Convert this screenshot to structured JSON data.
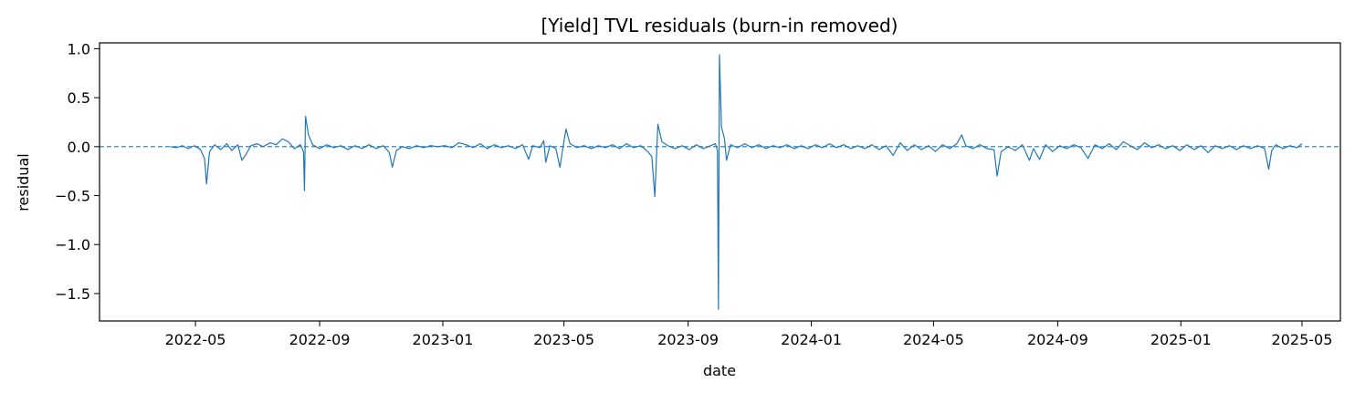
{
  "chart_data": {
    "type": "line",
    "title": "[Yield] TVL residuals (burn-in removed)",
    "xlabel": "date",
    "ylabel": "residual",
    "x_range": [
      "2022-01-26",
      "2025-06-08"
    ],
    "ylim": [
      -1.78,
      1.06
    ],
    "x_ticks": [
      "2022-05-01",
      "2022-09-01",
      "2023-01-01",
      "2023-05-01",
      "2023-09-01",
      "2024-01-01",
      "2024-05-01",
      "2024-09-01",
      "2025-01-01",
      "2025-05-01"
    ],
    "x_tick_labels": [
      "2022-05",
      "2022-09",
      "2023-01",
      "2023-05",
      "2023-09",
      "2024-01",
      "2024-05",
      "2024-09",
      "2025-01",
      "2025-05"
    ],
    "y_ticks": [
      1.0,
      0.5,
      0.0,
      -0.5,
      -1.0,
      -1.5
    ],
    "y_tick_labels": [
      "1.0",
      "0.5",
      "0.0",
      "−0.5",
      "−1.0",
      "−1.5"
    ],
    "reference_line": {
      "y": 0,
      "style": "dashed"
    },
    "grid": false,
    "series": [
      {
        "color": "#1f77b4",
        "points": [
          [
            "2022-04-06",
            0.0
          ],
          [
            "2022-04-12",
            -0.01
          ],
          [
            "2022-04-18",
            0.01
          ],
          [
            "2022-04-24",
            -0.02
          ],
          [
            "2022-04-30",
            0.01
          ],
          [
            "2022-05-06",
            -0.03
          ],
          [
            "2022-05-10",
            -0.12
          ],
          [
            "2022-05-12",
            -0.38
          ],
          [
            "2022-05-15",
            -0.05
          ],
          [
            "2022-05-20",
            0.02
          ],
          [
            "2022-05-26",
            -0.03
          ],
          [
            "2022-06-01",
            0.03
          ],
          [
            "2022-06-06",
            -0.04
          ],
          [
            "2022-06-12",
            0.02
          ],
          [
            "2022-06-16",
            -0.14
          ],
          [
            "2022-06-20",
            -0.08
          ],
          [
            "2022-06-25",
            0.01
          ],
          [
            "2022-07-01",
            0.03
          ],
          [
            "2022-07-07",
            0.0
          ],
          [
            "2022-07-14",
            0.04
          ],
          [
            "2022-07-20",
            0.02
          ],
          [
            "2022-07-26",
            0.08
          ],
          [
            "2022-08-01",
            0.05
          ],
          [
            "2022-08-07",
            -0.02
          ],
          [
            "2022-08-13",
            0.02
          ],
          [
            "2022-08-16",
            -0.05
          ],
          [
            "2022-08-17",
            -0.45
          ],
          [
            "2022-08-18",
            0.31
          ],
          [
            "2022-08-21",
            0.12
          ],
          [
            "2022-08-25",
            0.02
          ],
          [
            "2022-09-01",
            -0.02
          ],
          [
            "2022-09-08",
            0.02
          ],
          [
            "2022-09-15",
            -0.01
          ],
          [
            "2022-09-22",
            0.01
          ],
          [
            "2022-09-29",
            -0.03
          ],
          [
            "2022-10-06",
            0.01
          ],
          [
            "2022-10-13",
            -0.02
          ],
          [
            "2022-10-20",
            0.02
          ],
          [
            "2022-10-27",
            -0.02
          ],
          [
            "2022-11-03",
            0.01
          ],
          [
            "2022-11-09",
            -0.06
          ],
          [
            "2022-11-12",
            -0.21
          ],
          [
            "2022-11-16",
            -0.04
          ],
          [
            "2022-11-22",
            0.0
          ],
          [
            "2022-11-29",
            -0.02
          ],
          [
            "2022-12-06",
            0.01
          ],
          [
            "2022-12-13",
            -0.01
          ],
          [
            "2022-12-20",
            0.01
          ],
          [
            "2022-12-27",
            0.0
          ],
          [
            "2023-01-03",
            0.01
          ],
          [
            "2023-01-10",
            -0.01
          ],
          [
            "2023-01-17",
            0.04
          ],
          [
            "2023-01-24",
            0.02
          ],
          [
            "2023-01-31",
            -0.01
          ],
          [
            "2023-02-07",
            0.03
          ],
          [
            "2023-02-14",
            -0.02
          ],
          [
            "2023-02-21",
            0.02
          ],
          [
            "2023-02-28",
            -0.01
          ],
          [
            "2023-03-07",
            0.01
          ],
          [
            "2023-03-14",
            -0.02
          ],
          [
            "2023-03-21",
            0.02
          ],
          [
            "2023-03-27",
            -0.13
          ],
          [
            "2023-03-31",
            0.01
          ],
          [
            "2023-04-07",
            -0.01
          ],
          [
            "2023-04-11",
            0.06
          ],
          [
            "2023-04-13",
            -0.16
          ],
          [
            "2023-04-17",
            0.01
          ],
          [
            "2023-04-23",
            -0.02
          ],
          [
            "2023-04-27",
            -0.21
          ],
          [
            "2023-04-30",
            -0.01
          ],
          [
            "2023-05-03",
            0.18
          ],
          [
            "2023-05-07",
            0.03
          ],
          [
            "2023-05-14",
            -0.01
          ],
          [
            "2023-05-21",
            0.01
          ],
          [
            "2023-05-28",
            -0.02
          ],
          [
            "2023-06-04",
            0.01
          ],
          [
            "2023-06-11",
            -0.01
          ],
          [
            "2023-06-18",
            0.02
          ],
          [
            "2023-06-25",
            -0.02
          ],
          [
            "2023-07-02",
            0.03
          ],
          [
            "2023-07-09",
            -0.01
          ],
          [
            "2023-07-16",
            0.01
          ],
          [
            "2023-07-23",
            -0.05
          ],
          [
            "2023-07-27",
            -0.1
          ],
          [
            "2023-07-30",
            -0.51
          ],
          [
            "2023-08-02",
            0.23
          ],
          [
            "2023-08-06",
            0.05
          ],
          [
            "2023-08-12",
            0.01
          ],
          [
            "2023-08-19",
            -0.02
          ],
          [
            "2023-08-26",
            0.01
          ],
          [
            "2023-09-02",
            -0.03
          ],
          [
            "2023-09-09",
            0.02
          ],
          [
            "2023-09-16",
            -0.02
          ],
          [
            "2023-09-23",
            0.01
          ],
          [
            "2023-09-28",
            0.03
          ],
          [
            "2023-09-30",
            -0.04
          ],
          [
            "2023-10-01",
            -1.66
          ],
          [
            "2023-10-02",
            0.94
          ],
          [
            "2023-10-04",
            0.2
          ],
          [
            "2023-10-07",
            0.08
          ],
          [
            "2023-10-09",
            -0.14
          ],
          [
            "2023-10-13",
            0.02
          ],
          [
            "2023-10-20",
            -0.01
          ],
          [
            "2023-10-27",
            0.03
          ],
          [
            "2023-11-03",
            -0.01
          ],
          [
            "2023-11-10",
            0.02
          ],
          [
            "2023-11-17",
            -0.02
          ],
          [
            "2023-11-24",
            0.01
          ],
          [
            "2023-12-01",
            -0.01
          ],
          [
            "2023-12-08",
            0.02
          ],
          [
            "2023-12-15",
            -0.02
          ],
          [
            "2023-12-22",
            0.01
          ],
          [
            "2023-12-29",
            -0.02
          ],
          [
            "2024-01-05",
            0.02
          ],
          [
            "2024-01-12",
            -0.01
          ],
          [
            "2024-01-19",
            0.03
          ],
          [
            "2024-01-26",
            -0.01
          ],
          [
            "2024-02-02",
            0.02
          ],
          [
            "2024-02-09",
            -0.02
          ],
          [
            "2024-02-16",
            0.01
          ],
          [
            "2024-02-23",
            -0.02
          ],
          [
            "2024-03-01",
            0.02
          ],
          [
            "2024-03-08",
            -0.03
          ],
          [
            "2024-03-15",
            0.01
          ],
          [
            "2024-03-22",
            -0.09
          ],
          [
            "2024-03-29",
            0.04
          ],
          [
            "2024-04-05",
            -0.04
          ],
          [
            "2024-04-12",
            0.02
          ],
          [
            "2024-04-19",
            -0.03
          ],
          [
            "2024-04-26",
            0.01
          ],
          [
            "2024-05-03",
            -0.05
          ],
          [
            "2024-05-10",
            0.02
          ],
          [
            "2024-05-17",
            -0.02
          ],
          [
            "2024-05-24",
            0.03
          ],
          [
            "2024-05-29",
            0.12
          ],
          [
            "2024-06-02",
            0.01
          ],
          [
            "2024-06-09",
            -0.02
          ],
          [
            "2024-06-16",
            0.02
          ],
          [
            "2024-06-23",
            -0.02
          ],
          [
            "2024-06-30",
            -0.03
          ],
          [
            "2024-07-03",
            -0.3
          ],
          [
            "2024-07-07",
            -0.05
          ],
          [
            "2024-07-14",
            0.0
          ],
          [
            "2024-07-21",
            -0.04
          ],
          [
            "2024-07-28",
            0.02
          ],
          [
            "2024-08-04",
            -0.14
          ],
          [
            "2024-08-08",
            -0.02
          ],
          [
            "2024-08-14",
            -0.13
          ],
          [
            "2024-08-20",
            0.02
          ],
          [
            "2024-08-27",
            -0.05
          ],
          [
            "2024-09-03",
            0.01
          ],
          [
            "2024-09-10",
            -0.02
          ],
          [
            "2024-09-17",
            0.02
          ],
          [
            "2024-09-24",
            -0.01
          ],
          [
            "2024-10-01",
            -0.12
          ],
          [
            "2024-10-08",
            0.02
          ],
          [
            "2024-10-15",
            -0.02
          ],
          [
            "2024-10-22",
            0.03
          ],
          [
            "2024-10-29",
            -0.03
          ],
          [
            "2024-11-05",
            0.05
          ],
          [
            "2024-11-12",
            0.01
          ],
          [
            "2024-11-19",
            -0.03
          ],
          [
            "2024-11-26",
            0.04
          ],
          [
            "2024-12-03",
            -0.01
          ],
          [
            "2024-12-10",
            0.02
          ],
          [
            "2024-12-17",
            -0.02
          ],
          [
            "2024-12-24",
            0.01
          ],
          [
            "2024-12-31",
            -0.04
          ],
          [
            "2025-01-07",
            0.02
          ],
          [
            "2025-01-14",
            -0.03
          ],
          [
            "2025-01-21",
            0.01
          ],
          [
            "2025-01-28",
            -0.06
          ],
          [
            "2025-02-04",
            0.01
          ],
          [
            "2025-02-11",
            -0.02
          ],
          [
            "2025-02-18",
            0.01
          ],
          [
            "2025-02-25",
            -0.03
          ],
          [
            "2025-03-04",
            0.01
          ],
          [
            "2025-03-11",
            -0.02
          ],
          [
            "2025-03-18",
            0.01
          ],
          [
            "2025-03-25",
            -0.02
          ],
          [
            "2025-03-29",
            -0.23
          ],
          [
            "2025-04-01",
            -0.04
          ],
          [
            "2025-04-05",
            0.02
          ],
          [
            "2025-04-12",
            -0.02
          ],
          [
            "2025-04-19",
            0.01
          ],
          [
            "2025-04-26",
            -0.01
          ],
          [
            "2025-05-01",
            0.03
          ]
        ]
      }
    ]
  }
}
